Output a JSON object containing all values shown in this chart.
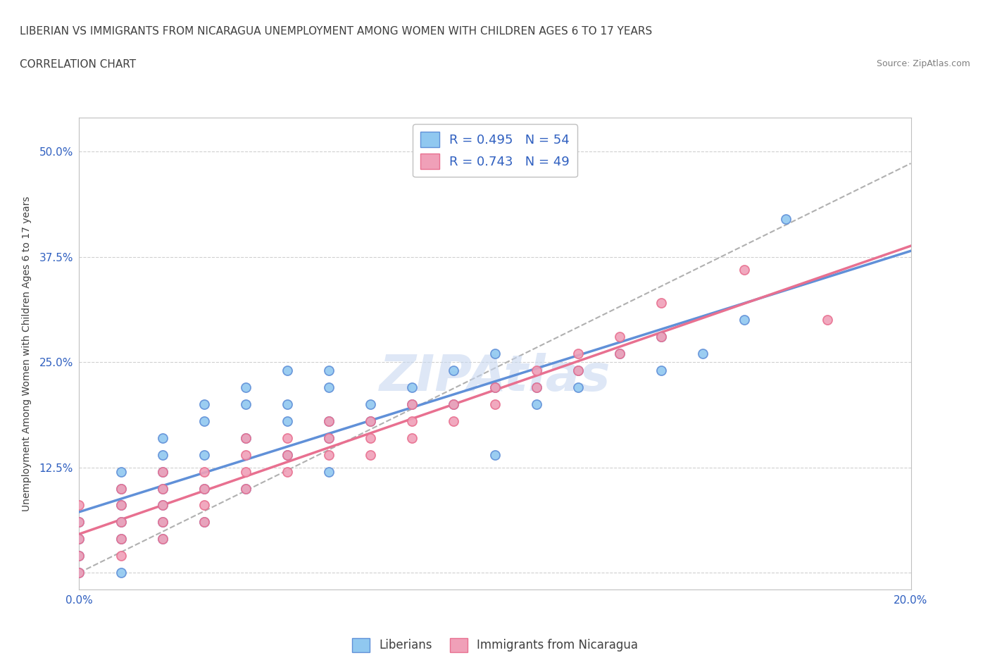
{
  "title_line1": "LIBERIAN VS IMMIGRANTS FROM NICARAGUA UNEMPLOYMENT AMONG WOMEN WITH CHILDREN AGES 6 TO 17 YEARS",
  "title_line2": "CORRELATION CHART",
  "source_text": "Source: ZipAtlas.com",
  "xlabel": "",
  "ylabel": "Unemployment Among Women with Children Ages 6 to 17 years",
  "xlim": [
    0.0,
    0.2
  ],
  "ylim": [
    -0.02,
    0.54
  ],
  "xtick_labels": [
    "0.0%",
    "",
    "",
    "",
    "20.0%"
  ],
  "xtick_values": [
    0.0,
    0.05,
    0.1,
    0.15,
    0.2
  ],
  "ytick_labels": [
    "",
    "12.5%",
    "25.0%",
    "37.5%",
    "50.0%"
  ],
  "ytick_values": [
    0.0,
    0.125,
    0.25,
    0.375,
    0.5
  ],
  "blue_R": 0.495,
  "blue_N": 54,
  "pink_R": 0.743,
  "pink_N": 49,
  "blue_color": "#90C8F0",
  "pink_color": "#F0A0B8",
  "blue_line_color": "#6090D8",
  "pink_line_color": "#E87090",
  "dash_line_color": "#B0B0B0",
  "legend_text_color": "#3060C0",
  "watermark_color": "#C8D8F0",
  "watermark_text": "ZIPAtlas",
  "blue_scatter_x": [
    0.0,
    0.0,
    0.0,
    0.0,
    0.01,
    0.01,
    0.01,
    0.01,
    0.01,
    0.01,
    0.02,
    0.02,
    0.02,
    0.02,
    0.02,
    0.02,
    0.02,
    0.03,
    0.03,
    0.03,
    0.03,
    0.03,
    0.04,
    0.04,
    0.04,
    0.04,
    0.05,
    0.05,
    0.05,
    0.05,
    0.06,
    0.06,
    0.06,
    0.06,
    0.06,
    0.07,
    0.07,
    0.08,
    0.08,
    0.09,
    0.09,
    0.1,
    0.1,
    0.1,
    0.11,
    0.11,
    0.12,
    0.12,
    0.13,
    0.14,
    0.14,
    0.15,
    0.16,
    0.17
  ],
  "blue_scatter_y": [
    0.0,
    0.02,
    0.04,
    0.06,
    0.0,
    0.04,
    0.06,
    0.08,
    0.1,
    0.12,
    0.04,
    0.06,
    0.08,
    0.1,
    0.12,
    0.14,
    0.16,
    0.06,
    0.1,
    0.14,
    0.18,
    0.2,
    0.1,
    0.16,
    0.2,
    0.22,
    0.14,
    0.18,
    0.2,
    0.24,
    0.12,
    0.16,
    0.18,
    0.22,
    0.24,
    0.18,
    0.2,
    0.2,
    0.22,
    0.2,
    0.24,
    0.14,
    0.22,
    0.26,
    0.2,
    0.22,
    0.22,
    0.24,
    0.26,
    0.24,
    0.28,
    0.26,
    0.3,
    0.42
  ],
  "pink_scatter_x": [
    0.0,
    0.0,
    0.0,
    0.0,
    0.0,
    0.01,
    0.01,
    0.01,
    0.01,
    0.01,
    0.02,
    0.02,
    0.02,
    0.02,
    0.02,
    0.03,
    0.03,
    0.03,
    0.03,
    0.04,
    0.04,
    0.04,
    0.04,
    0.05,
    0.05,
    0.05,
    0.06,
    0.06,
    0.06,
    0.07,
    0.07,
    0.07,
    0.08,
    0.08,
    0.08,
    0.09,
    0.09,
    0.1,
    0.1,
    0.11,
    0.11,
    0.12,
    0.12,
    0.13,
    0.13,
    0.14,
    0.14,
    0.16,
    0.18
  ],
  "pink_scatter_y": [
    0.0,
    0.02,
    0.04,
    0.06,
    0.08,
    0.02,
    0.04,
    0.06,
    0.08,
    0.1,
    0.04,
    0.06,
    0.08,
    0.1,
    0.12,
    0.06,
    0.08,
    0.1,
    0.12,
    0.1,
    0.12,
    0.14,
    0.16,
    0.12,
    0.14,
    0.16,
    0.14,
    0.16,
    0.18,
    0.14,
    0.16,
    0.18,
    0.16,
    0.18,
    0.2,
    0.18,
    0.2,
    0.2,
    0.22,
    0.22,
    0.24,
    0.24,
    0.26,
    0.26,
    0.28,
    0.28,
    0.32,
    0.36,
    0.3
  ],
  "grid_color": "#D0D0D0",
  "background_color": "#FFFFFF",
  "fig_background_color": "#FFFFFF"
}
